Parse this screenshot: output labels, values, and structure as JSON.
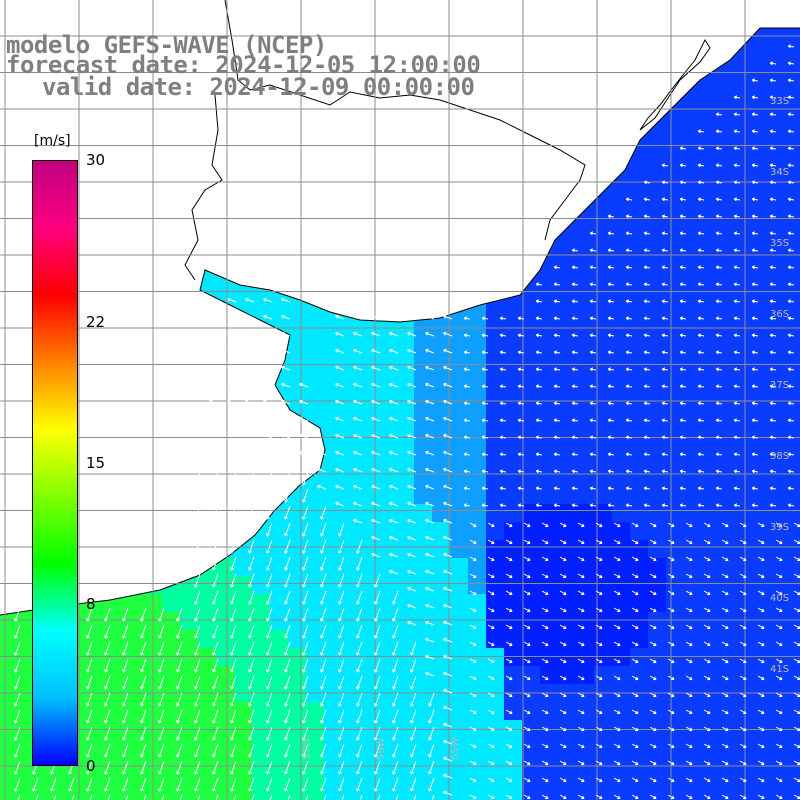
{
  "title": {
    "line1": "modelo GEFS-WAVE (NCEP)",
    "line2": "forecast date: 2024-12-05 12:00:00",
    "line3": "valid date: 2024-12-09 00:00:00"
  },
  "colorbar": {
    "unit": "[m/s]",
    "ticks": [
      "30",
      "22",
      "15",
      "8",
      "0"
    ],
    "tick_values": [
      30,
      22,
      15,
      8,
      0
    ],
    "min": 0,
    "max": 30,
    "colors": [
      "#0000ff",
      "#00c0ff",
      "#00ffff",
      "#00ff00",
      "#80ff00",
      "#ffff00",
      "#ff8000",
      "#ff0000",
      "#ff0080",
      "#c0007f"
    ]
  },
  "map": {
    "variable": "wind speed and direction",
    "ocean_colors": {
      "weak": "#0a3cff",
      "moderate": "#0fa0ff",
      "fresh": "#00e8ff",
      "strong": "#20ff40"
    },
    "land_color": "#ffffff",
    "grid_color": "#8c8c8c",
    "coastline_color": "#000000",
    "lat_labels": [
      "33S",
      "34S",
      "35S",
      "36S",
      "37S",
      "38S",
      "39S",
      "40S",
      "41S"
    ],
    "lon_labels": [
      "57W",
      "56W",
      "55W"
    ]
  }
}
